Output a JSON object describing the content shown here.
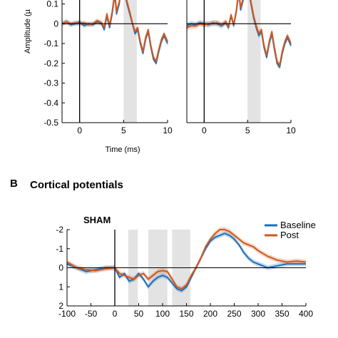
{
  "colors": {
    "baseline": "#1f6fb8",
    "post": "#d2571c",
    "shade": "#e3e3e3"
  },
  "panel_b": {
    "letter": "B",
    "title": "Cortical potentials"
  },
  "chart_data": [
    {
      "type": "line",
      "panel": "A-left",
      "ylabel": "Amplitude (µ",
      "xlabel": "Time (ms)",
      "xlim": [
        -2,
        10
      ],
      "ylim": [
        -0.5,
        0.12
      ],
      "xticks": [
        "0",
        "5",
        "10"
      ],
      "xtick_values": [
        0,
        5,
        10
      ],
      "yticks": [
        "0.1",
        "0",
        "-0.1",
        "-0.2",
        "-0.3",
        "-0.4",
        "-0.5"
      ],
      "ytick_values": [
        0.1,
        0,
        -0.1,
        -0.2,
        -0.3,
        -0.4,
        -0.5
      ],
      "shaded_interval": [
        5,
        6.5
      ],
      "x": [
        -2,
        -1.5,
        -1,
        -0.5,
        0,
        0.5,
        1,
        1.5,
        2,
        2.5,
        2.8,
        3.1,
        3.4,
        3.7,
        4.0,
        4.2,
        4.5,
        4.8,
        5.1,
        5.4,
        5.7,
        6.0,
        6.3,
        6.6,
        6.9,
        7.2,
        7.5,
        7.8,
        8.1,
        8.4,
        8.7,
        9.0,
        9.3,
        9.6,
        10
      ],
      "series": [
        {
          "name": "",
          "values": [
            0.0,
            0.01,
            -0.005,
            0.0,
            0.01,
            -0.01,
            0.0,
            -0.005,
            0.01,
            0.0,
            -0.03,
            0.04,
            -0.02,
            0.05,
            0.15,
            0.05,
            0.1,
            0.2,
            0.16,
            0.1,
            0.05,
            0.0,
            -0.05,
            -0.03,
            -0.1,
            -0.15,
            -0.08,
            -0.04,
            -0.12,
            -0.18,
            -0.2,
            -0.14,
            -0.09,
            -0.06,
            -0.1
          ]
        },
        {
          "name": "",
          "values": [
            0.0,
            0.01,
            0.0,
            0.005,
            0.0,
            0.005,
            -0.005,
            0.0,
            0.015,
            0.005,
            -0.02,
            0.05,
            -0.01,
            0.06,
            0.16,
            0.06,
            0.11,
            0.21,
            0.17,
            0.11,
            0.06,
            0.005,
            -0.04,
            -0.02,
            -0.09,
            -0.14,
            -0.07,
            -0.03,
            -0.11,
            -0.17,
            -0.19,
            -0.13,
            -0.08,
            -0.05,
            -0.09
          ]
        }
      ]
    },
    {
      "type": "line",
      "panel": "A-right",
      "xlim": [
        -2,
        10
      ],
      "ylim": [
        -0.5,
        0.12
      ],
      "xticks": [
        "0",
        "5",
        "10"
      ],
      "xtick_values": [
        0,
        5,
        10
      ],
      "shaded_interval": [
        5,
        6.5
      ],
      "x": [
        -2,
        -1.5,
        -1,
        -0.5,
        0,
        0.5,
        1,
        1.5,
        2,
        2.5,
        2.8,
        3.1,
        3.4,
        3.7,
        4.0,
        4.2,
        4.5,
        4.8,
        5.1,
        5.4,
        5.7,
        6.0,
        6.3,
        6.6,
        6.9,
        7.2,
        7.5,
        7.8,
        8.1,
        8.4,
        8.7,
        9.0,
        9.3,
        9.6,
        10
      ],
      "series": [
        {
          "name": "",
          "values": [
            -0.01,
            0.0,
            -0.005,
            0.005,
            0.0,
            -0.005,
            0.005,
            0.0,
            -0.01,
            0.005,
            -0.02,
            0.04,
            -0.01,
            0.06,
            0.16,
            0.07,
            0.12,
            0.22,
            0.17,
            0.1,
            0.03,
            -0.02,
            -0.06,
            -0.04,
            -0.12,
            -0.17,
            -0.1,
            -0.05,
            -0.13,
            -0.2,
            -0.22,
            -0.15,
            -0.1,
            -0.07,
            -0.11
          ]
        },
        {
          "name": "",
          "values": [
            -0.02,
            -0.01,
            -0.01,
            0.0,
            -0.005,
            0.0,
            0.0,
            0.005,
            -0.005,
            0.01,
            -0.015,
            0.045,
            -0.005,
            0.065,
            0.17,
            0.08,
            0.13,
            0.23,
            0.18,
            0.11,
            0.04,
            -0.01,
            -0.05,
            -0.03,
            -0.11,
            -0.16,
            -0.09,
            -0.04,
            -0.12,
            -0.19,
            -0.21,
            -0.14,
            -0.09,
            -0.06,
            -0.1
          ]
        }
      ]
    },
    {
      "type": "line",
      "panel": "B",
      "title": "SHAM",
      "xlim": [
        -100,
        400
      ],
      "ylim": [
        2,
        -2
      ],
      "xticks": [
        "-100",
        "-50",
        "0",
        "50",
        "100",
        "150",
        "200",
        "250",
        "300",
        "350",
        "400"
      ],
      "xtick_values": [
        -100,
        -50,
        0,
        50,
        100,
        150,
        200,
        250,
        300,
        350,
        400
      ],
      "yticks": [
        "-2",
        "-1",
        "0",
        "1",
        "2"
      ],
      "ytick_values": [
        -2,
        -1,
        0,
        1,
        2
      ],
      "shaded_intervals": [
        [
          28,
          48
        ],
        [
          70,
          110
        ],
        [
          120,
          158
        ]
      ],
      "x": [
        -100,
        -80,
        -60,
        -40,
        -20,
        0,
        10,
        20,
        30,
        40,
        50,
        60,
        70,
        80,
        90,
        100,
        110,
        120,
        130,
        140,
        150,
        160,
        170,
        180,
        190,
        200,
        210,
        220,
        230,
        240,
        250,
        260,
        270,
        280,
        290,
        300,
        320,
        340,
        360,
        380,
        400
      ],
      "series": [
        {
          "name": "Baseline",
          "values": [
            -0.2,
            0.0,
            0.2,
            0.1,
            0.0,
            0.0,
            0.5,
            0.3,
            0.7,
            0.6,
            0.3,
            0.6,
            1.0,
            0.7,
            0.5,
            0.4,
            0.5,
            0.8,
            1.1,
            1.2,
            1.0,
            0.5,
            0.0,
            -0.5,
            -1.0,
            -1.4,
            -1.6,
            -1.7,
            -1.8,
            -1.7,
            -1.5,
            -1.2,
            -0.8,
            -0.5,
            -0.3,
            -0.2,
            0.0,
            -0.1,
            -0.2,
            -0.2,
            -0.2
          ]
        },
        {
          "name": "Post",
          "values": [
            -0.3,
            0.0,
            0.1,
            0.15,
            0.05,
            0.0,
            0.3,
            0.4,
            0.5,
            0.6,
            0.4,
            0.3,
            0.6,
            0.4,
            0.2,
            0.15,
            0.2,
            0.6,
            1.0,
            1.1,
            0.9,
            0.4,
            0.0,
            -0.5,
            -1.1,
            -1.5,
            -1.8,
            -2.0,
            -2.0,
            -1.9,
            -1.7,
            -1.5,
            -1.3,
            -1.2,
            -1.1,
            -0.9,
            -0.6,
            -0.4,
            -0.3,
            -0.35,
            -0.3
          ]
        }
      ],
      "legend": {
        "position": "top-right",
        "entries": [
          "Baseline",
          "Post"
        ]
      }
    }
  ]
}
